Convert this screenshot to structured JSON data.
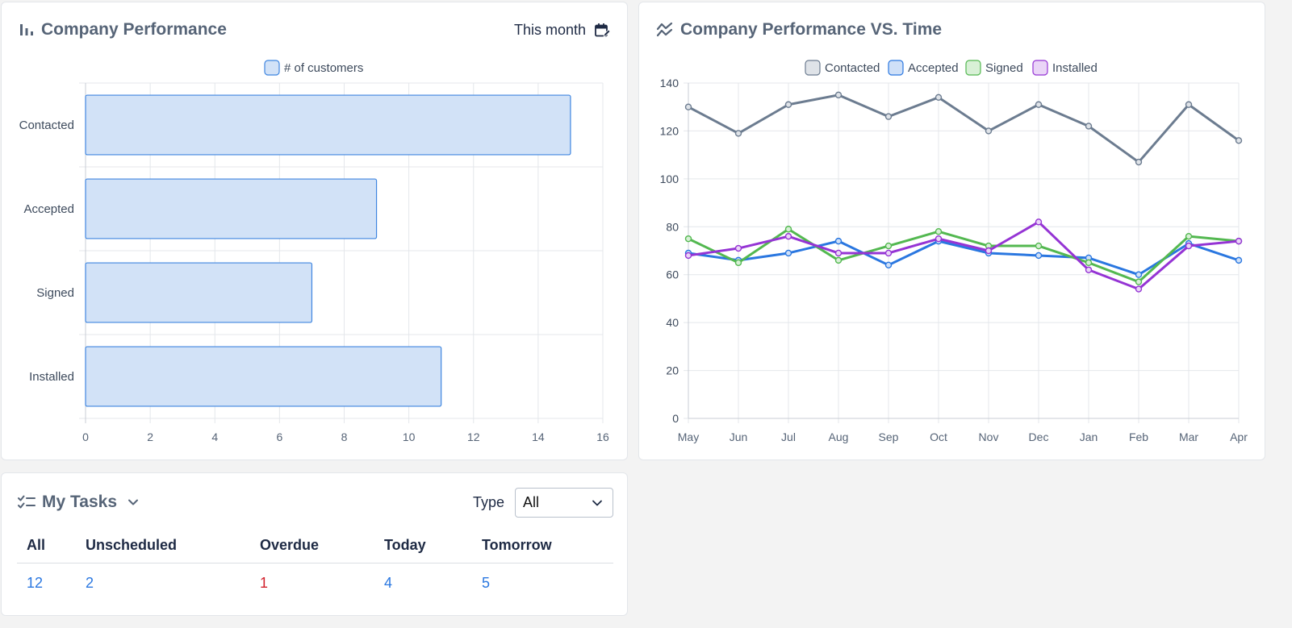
{
  "performance": {
    "title": "Company Performance",
    "filter_label": "This month",
    "chart_data": {
      "type": "bar",
      "orientation": "horizontal",
      "categories": [
        "Contacted",
        "Accepted",
        "Signed",
        "Installed"
      ],
      "series": [
        {
          "name": "# of customers",
          "values": [
            15,
            9,
            7,
            11
          ]
        }
      ],
      "xlim": [
        0,
        16
      ],
      "xticks": [
        "0",
        "2",
        "4",
        "6",
        "8",
        "10",
        "12",
        "14",
        "16"
      ],
      "grid": true,
      "legend": "top-center",
      "colors": {
        "fill": "#d2e2f7",
        "stroke": "#3f86e0"
      }
    }
  },
  "performance_time": {
    "title": "Company Performance VS. Time",
    "chart_data": {
      "type": "line",
      "x": [
        "May",
        "Jun",
        "Jul",
        "Aug",
        "Sep",
        "Oct",
        "Nov",
        "Dec",
        "Jan",
        "Feb",
        "Mar",
        "Apr"
      ],
      "series": [
        {
          "name": "Contacted",
          "color": "#6c7c90",
          "fill": "#dfe3e8",
          "values": [
            130,
            119,
            131,
            135,
            126,
            134,
            120,
            131,
            122,
            107,
            131,
            116
          ]
        },
        {
          "name": "Accepted",
          "color": "#2a77e0",
          "fill": "#cfe0f8",
          "values": [
            69,
            66,
            69,
            74,
            64,
            74,
            69,
            68,
            67,
            60,
            73,
            66
          ]
        },
        {
          "name": "Signed",
          "color": "#53b850",
          "fill": "#d8f0d6",
          "values": [
            75,
            65,
            79,
            66,
            72,
            78,
            72,
            72,
            65,
            57,
            76,
            74
          ]
        },
        {
          "name": "Installed",
          "color": "#9534d4",
          "fill": "#ead5f7",
          "values": [
            68,
            71,
            76,
            69,
            69,
            75,
            70,
            82,
            62,
            54,
            72,
            74
          ]
        }
      ],
      "ylim": [
        0,
        140
      ],
      "yticks": [
        "0",
        "20",
        "40",
        "60",
        "80",
        "100",
        "120",
        "140"
      ],
      "grid": true,
      "legend": "top-center"
    }
  },
  "tasks": {
    "title": "My Tasks",
    "type_label": "Type",
    "type_value": "All",
    "columns": [
      {
        "label": "All",
        "value": "12",
        "color": "#2a77e0"
      },
      {
        "label": "Unscheduled",
        "value": "2",
        "color": "#2a77e0"
      },
      {
        "label": "Overdue",
        "value": "1",
        "color": "#d21f2a"
      },
      {
        "label": "Today",
        "value": "4",
        "color": "#2a77e0"
      },
      {
        "label": "Tomorrow",
        "value": "5",
        "color": "#2a77e0"
      }
    ]
  }
}
